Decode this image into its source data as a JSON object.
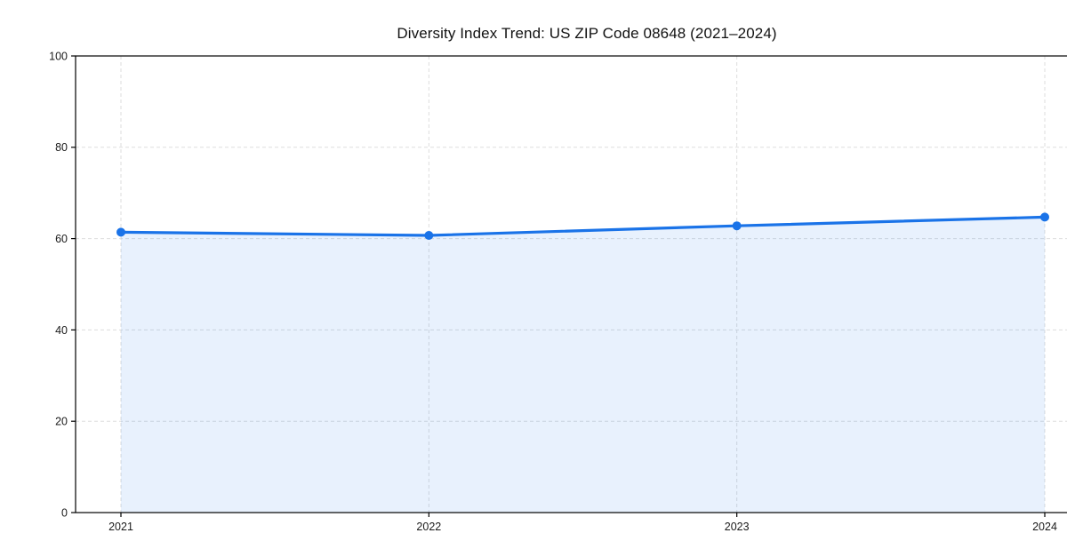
{
  "chart_data": {
    "type": "area",
    "title": "Diversity Index Trend: US ZIP Code 08648 (2021–2024)",
    "x": [
      "2021",
      "2022",
      "2023",
      "2024"
    ],
    "series": [
      {
        "name": "Diversity Index",
        "values": [
          61.4,
          60.7,
          62.8,
          64.7
        ]
      }
    ],
    "xlabel": "",
    "ylabel": "",
    "ylim": [
      0,
      100
    ],
    "yticks": [
      0,
      20,
      40,
      60,
      80,
      100
    ],
    "grid": "dashed",
    "legend_position": "none",
    "colors": {
      "line": "#1a73e8",
      "marker": "#1a73e8",
      "fill": "#1a73e8",
      "fill_opacity": 0.1,
      "grid": "#dddddd",
      "spine": "#000000",
      "tick_label": "#1a1a1a",
      "title": "#111111",
      "background": "#ffffff"
    }
  }
}
